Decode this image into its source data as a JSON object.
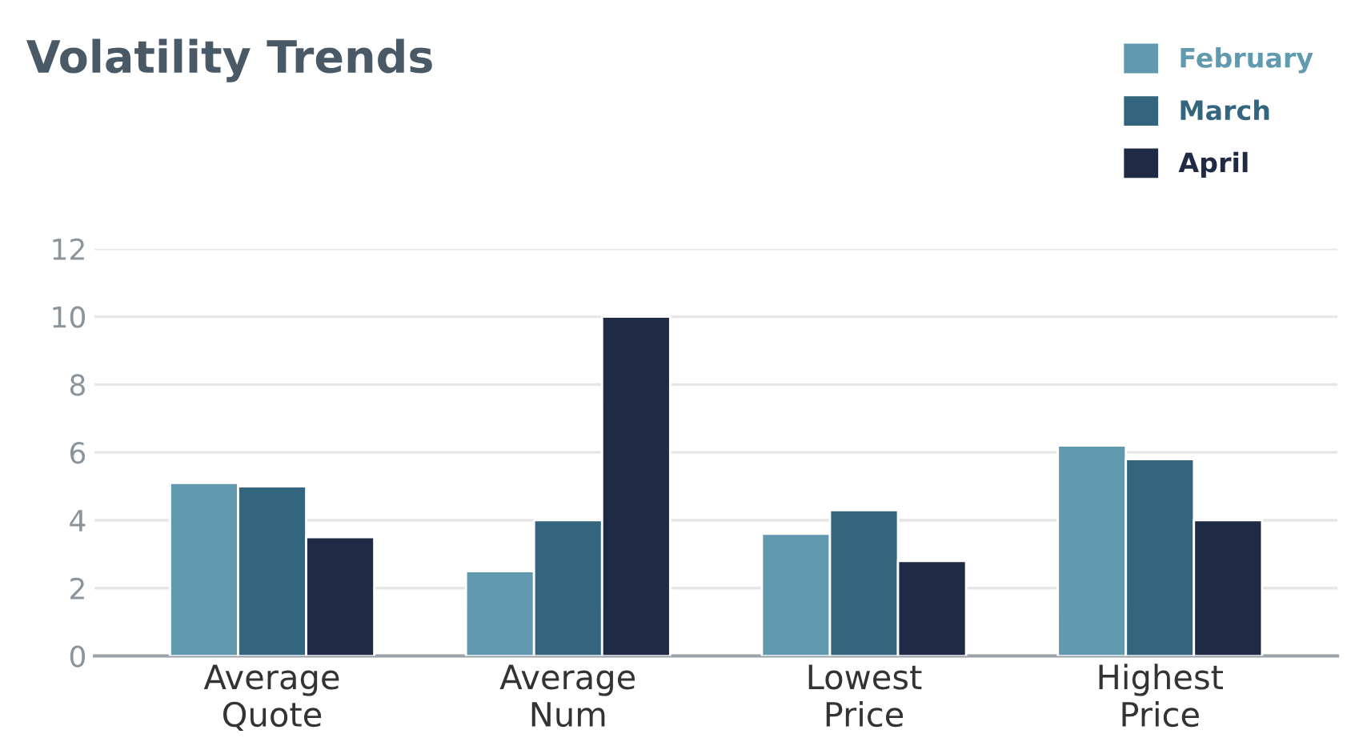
{
  "chart_data": {
    "type": "bar",
    "title": "Volatility Trends",
    "categories": [
      "Average\nQuote",
      "Average\nNum",
      "Lowest\nPrice",
      "Highest\nPrice"
    ],
    "series": [
      {
        "name": "February",
        "color": "#6199ae",
        "values": [
          5.1,
          2.5,
          3.6,
          6.2
        ]
      },
      {
        "name": "March",
        "color": "#33667e",
        "values": [
          5.0,
          4.0,
          4.3,
          5.8
        ]
      },
      {
        "name": "April",
        "color": "#1f2a44",
        "values": [
          3.5,
          10.0,
          2.8,
          4.0
        ]
      }
    ],
    "ylim": [
      0,
      12
    ],
    "yticks": [
      0,
      2,
      4,
      6,
      8,
      10,
      12
    ],
    "grid": "y",
    "legend": "top right"
  }
}
